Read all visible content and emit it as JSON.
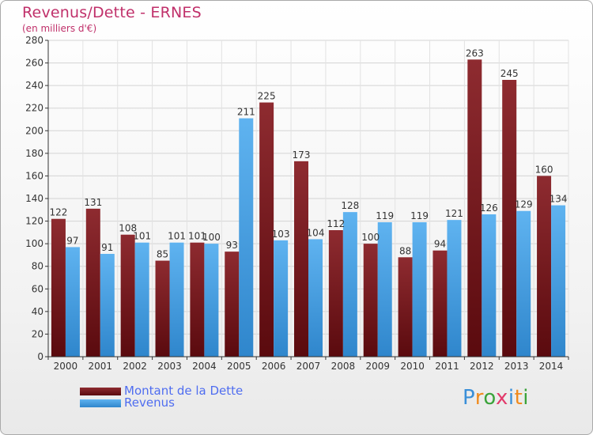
{
  "title": "Revenus/Dette - ERNES",
  "subtitle": "(en milliers d'€)",
  "logo": {
    "letters": [
      "P",
      "r",
      "o",
      "x",
      "i",
      "t",
      "i"
    ],
    "colors": [
      "#3a8fd8",
      "#f08a1c",
      "#3aa33a",
      "#e23a6b",
      "#3a8fd8",
      "#f08a1c",
      "#3aa33a"
    ]
  },
  "chart_data": {
    "type": "bar",
    "categories": [
      "2000",
      "2001",
      "2002",
      "2003",
      "2004",
      "2005",
      "2006",
      "2007",
      "2008",
      "2009",
      "2010",
      "2011",
      "2012",
      "2013",
      "2014"
    ],
    "series": [
      {
        "name": "Montant de la Dette",
        "color": "#7a1a1e",
        "values": [
          122,
          131,
          108,
          85,
          101,
          93,
          225,
          173,
          112,
          100,
          88,
          94,
          263,
          245,
          160
        ]
      },
      {
        "name": "Revenus",
        "color": "#4aa3e8",
        "values": [
          97,
          91,
          101,
          101,
          100,
          211,
          103,
          104,
          128,
          119,
          119,
          121,
          126,
          129,
          134
        ]
      }
    ],
    "ylim": [
      0,
      280
    ],
    "yticks": [
      0,
      20,
      40,
      60,
      80,
      100,
      120,
      140,
      160,
      180,
      200,
      220,
      240,
      260,
      280
    ],
    "grid": true,
    "legend": "bottom-left"
  }
}
